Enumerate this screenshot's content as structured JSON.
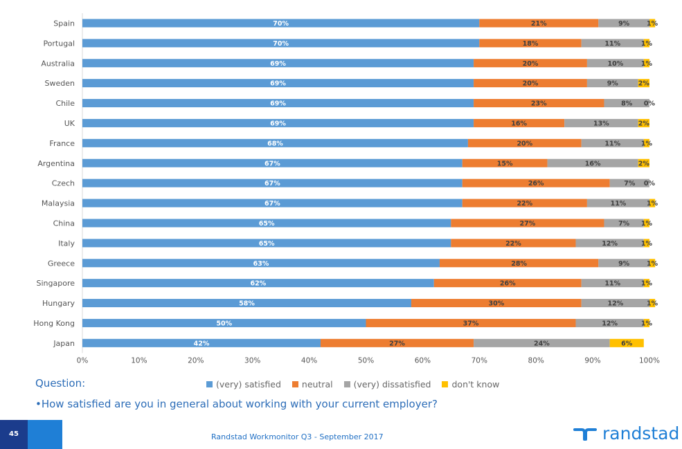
{
  "chart_data": {
    "type": "bar",
    "orientation": "horizontal",
    "stacked": true,
    "categories": [
      "Spain",
      "Portugal",
      "Australia",
      "Sweden",
      "Chile",
      "UK",
      "France",
      "Argentina",
      "Czech",
      "Malaysia",
      "China",
      "Italy",
      "Greece",
      "Singapore",
      "Hungary",
      "Hong Kong",
      "Japan"
    ],
    "series": [
      {
        "name": "(very) satisfied",
        "color": "#5b9bd5",
        "values": [
          70,
          70,
          69,
          69,
          69,
          69,
          68,
          67,
          67,
          67,
          65,
          65,
          63,
          62,
          58,
          50,
          42
        ]
      },
      {
        "name": "neutral",
        "color": "#ed7d31",
        "values": [
          21,
          18,
          20,
          20,
          23,
          16,
          20,
          15,
          26,
          22,
          27,
          22,
          28,
          26,
          30,
          37,
          27
        ]
      },
      {
        "name": "(very) dissatisfied",
        "color": "#a5a5a5",
        "values": [
          9,
          11,
          10,
          9,
          8,
          13,
          11,
          16,
          7,
          11,
          7,
          12,
          9,
          11,
          12,
          12,
          24
        ]
      },
      {
        "name": "don't know",
        "color": "#ffc000",
        "values": [
          1,
          1,
          1,
          2,
          0,
          2,
          1,
          2,
          0,
          1,
          1,
          1,
          1,
          1,
          1,
          1,
          6
        ]
      }
    ],
    "xlim": [
      0,
      100
    ],
    "xticks": [
      "0%",
      "10%",
      "20%",
      "30%",
      "40%",
      "50%",
      "60%",
      "70%",
      "80%",
      "90%",
      "100%"
    ],
    "legend_position": "bottom"
  },
  "question": {
    "label": "Question:",
    "text": "•How satisfied are you in general about working with your current employer?"
  },
  "footer": {
    "page_number": "45",
    "source": "Randstad Workmonitor Q3 - September 2017",
    "brand": "randstad"
  }
}
